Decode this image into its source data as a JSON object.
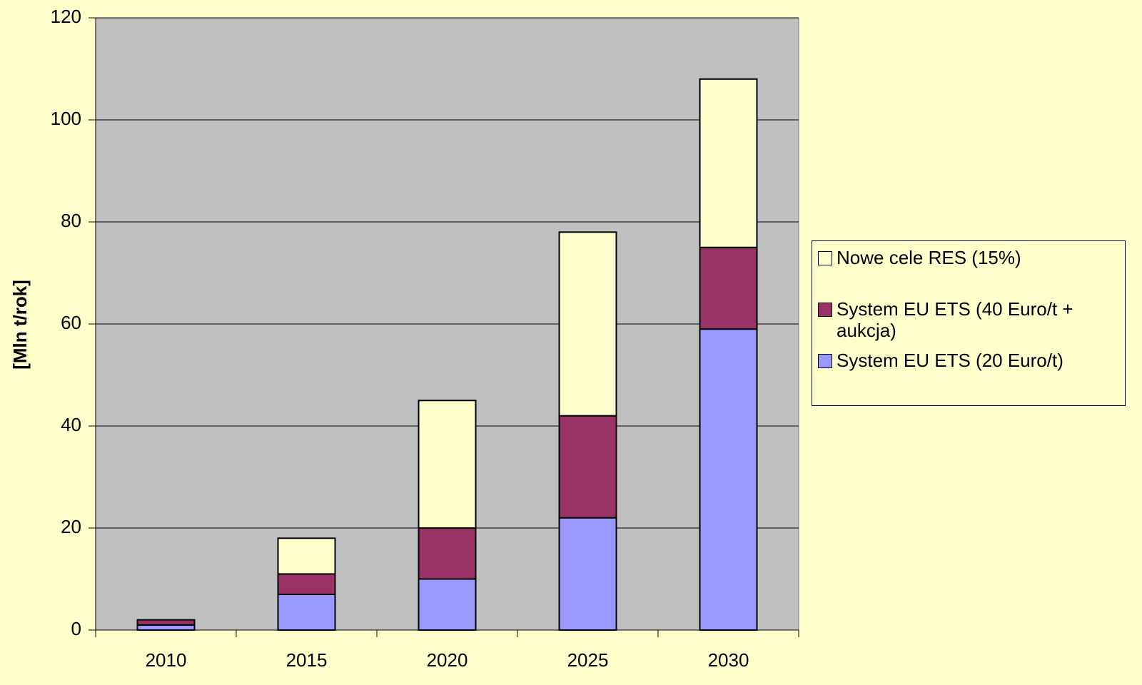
{
  "chart_data": {
    "type": "stacked-bar",
    "ylabel": "[Mln t/rok]",
    "categories": [
      "2010",
      "2015",
      "2020",
      "2025",
      "2030"
    ],
    "series": [
      {
        "name": "System EU ETS (20 Euro/t)",
        "color": "#9999ff",
        "values": [
          1,
          7,
          10,
          22,
          59
        ]
      },
      {
        "name": "System EU ETS (40 Euro/t + aukcja)",
        "color": "#993366",
        "values": [
          1,
          4,
          10,
          20,
          16
        ]
      },
      {
        "name": "Nowe cele RES (15%)",
        "color": "#ffffcc",
        "values": [
          0,
          7,
          25,
          36,
          33
        ]
      }
    ],
    "ylim": [
      0,
      120
    ],
    "yticks": [
      0,
      20,
      40,
      60,
      80,
      100,
      120
    ],
    "grid": true,
    "legend": "right"
  }
}
